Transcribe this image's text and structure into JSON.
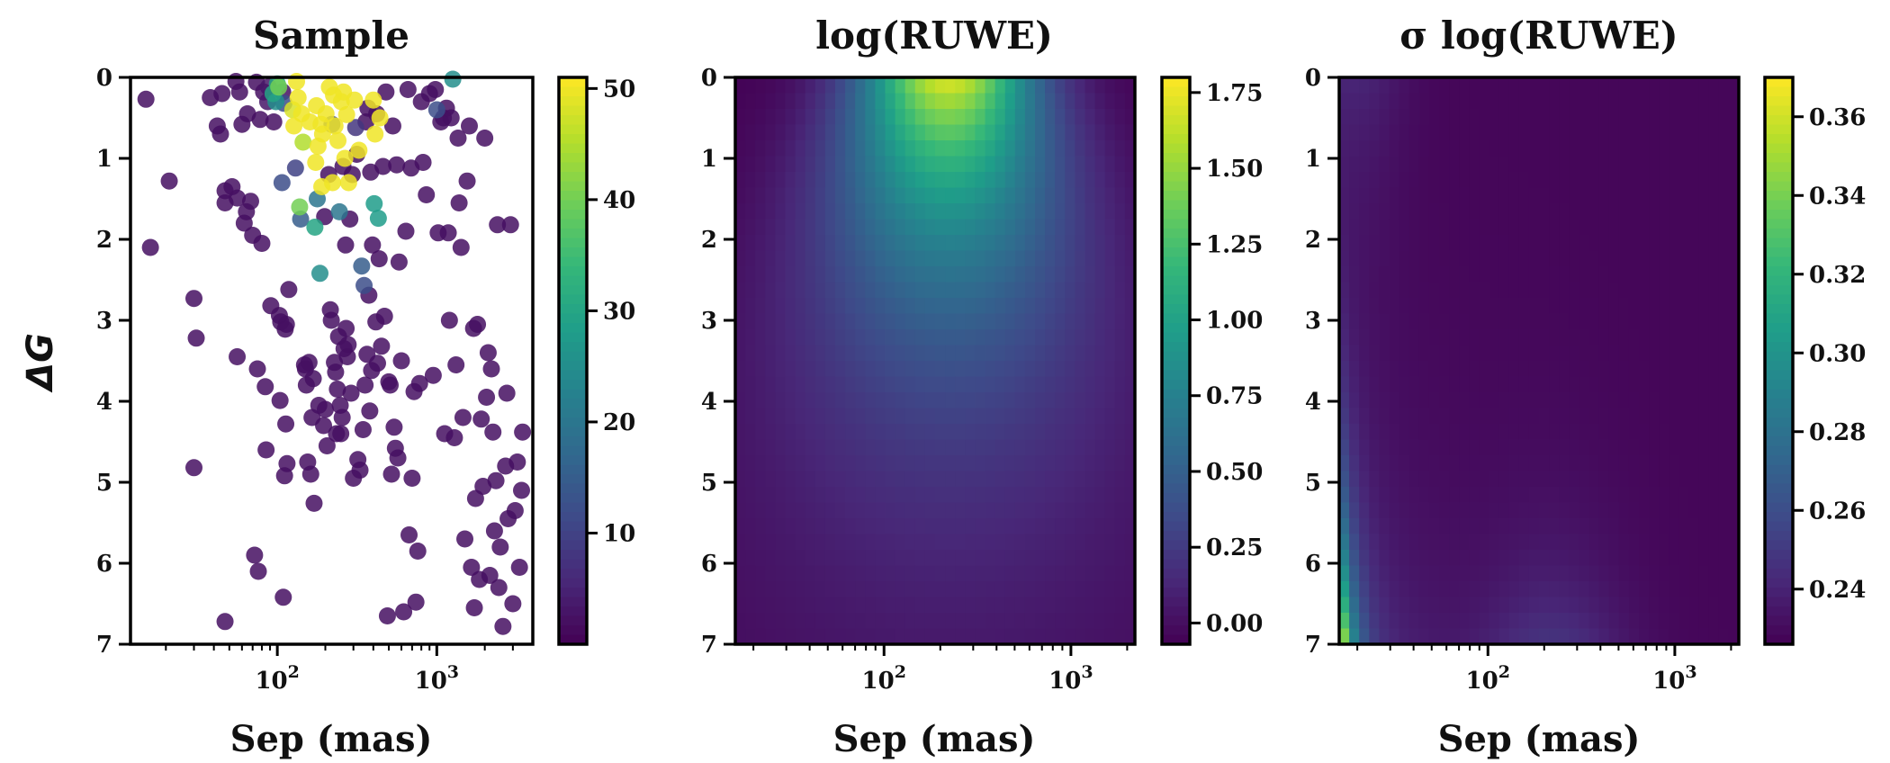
{
  "chart_data": [
    {
      "type": "scatter",
      "title": "Sample",
      "xlabel": "Sep (mas)",
      "ylabel": "ΔG",
      "x_scale": "log",
      "xlim": [
        12,
        4000
      ],
      "ylim": [
        0,
        7
      ],
      "y_inverted": true,
      "x_ticks": [
        {
          "value": 100,
          "base": "10",
          "exp": "2"
        },
        {
          "value": 1000,
          "base": "10",
          "exp": "3"
        }
      ],
      "y_ticks": [
        "0",
        "1",
        "2",
        "3",
        "4",
        "5",
        "6",
        "7"
      ],
      "colorbar": {
        "range": [
          0,
          51
        ],
        "ticks": [
          "10",
          "20",
          "30",
          "40",
          "50"
        ],
        "colormap": "viridis"
      },
      "points": [
        [
          15,
          0.27,
          2
        ],
        [
          16,
          2.1,
          2
        ],
        [
          21,
          1.28,
          2
        ],
        [
          30,
          2.73,
          2
        ],
        [
          31,
          3.22,
          2
        ],
        [
          30,
          4.82,
          2
        ],
        [
          38,
          0.25,
          2
        ],
        [
          42,
          0.6,
          2
        ],
        [
          44,
          0.7,
          2
        ],
        [
          45,
          0.2,
          2
        ],
        [
          47,
          1.4,
          2
        ],
        [
          47,
          1.55,
          2
        ],
        [
          47,
          6.72,
          2
        ],
        [
          52,
          1.35,
          2
        ],
        [
          55,
          0.05,
          2
        ],
        [
          56,
          1.49,
          2
        ],
        [
          56,
          3.45,
          2
        ],
        [
          58,
          0.18,
          2
        ],
        [
          60,
          0.58,
          2
        ],
        [
          62,
          1.8,
          2
        ],
        [
          64,
          1.66,
          2
        ],
        [
          65,
          0.45,
          2
        ],
        [
          68,
          1.53,
          2
        ],
        [
          70,
          1.95,
          2
        ],
        [
          72,
          5.9,
          2
        ],
        [
          74,
          0.06,
          2
        ],
        [
          75,
          3.6,
          2
        ],
        [
          76,
          6.1,
          2
        ],
        [
          78,
          0.52,
          2
        ],
        [
          80,
          2.05,
          2
        ],
        [
          82,
          0.18,
          2
        ],
        [
          84,
          3.82,
          2
        ],
        [
          85,
          4.6,
          2
        ],
        [
          87,
          0.3,
          3
        ],
        [
          88,
          0.12,
          3
        ],
        [
          91,
          2.82,
          2
        ],
        [
          94,
          0.2,
          30
        ],
        [
          95,
          0.55,
          2
        ],
        [
          98,
          0.3,
          25
        ],
        [
          100,
          0.08,
          30
        ],
        [
          102,
          0.12,
          40
        ],
        [
          103,
          2.94,
          2
        ],
        [
          104,
          3.99,
          2
        ],
        [
          105,
          3.02,
          2
        ],
        [
          107,
          1.3,
          12
        ],
        [
          108,
          0.18,
          2
        ],
        [
          109,
          6.42,
          2
        ],
        [
          110,
          0.32,
          12
        ],
        [
          111,
          4.92,
          2
        ],
        [
          112,
          3.11,
          2
        ],
        [
          113,
          4.28,
          2
        ],
        [
          114,
          3.05,
          2
        ],
        [
          115,
          4.77,
          2
        ],
        [
          118,
          2.62,
          2
        ],
        [
          125,
          0.4,
          48
        ],
        [
          127,
          0.6,
          50
        ],
        [
          130,
          1.12,
          10
        ],
        [
          132,
          0.05,
          50
        ],
        [
          135,
          0.25,
          50
        ],
        [
          138,
          1.6,
          40
        ],
        [
          140,
          1.75,
          15
        ],
        [
          142,
          0.45,
          50
        ],
        [
          145,
          0.8,
          45
        ],
        [
          148,
          3.55,
          2
        ],
        [
          150,
          3.6,
          2
        ],
        [
          152,
          3.8,
          2
        ],
        [
          155,
          4.75,
          2
        ],
        [
          158,
          3.52,
          2
        ],
        [
          160,
          0.55,
          50
        ],
        [
          162,
          4.9,
          2
        ],
        [
          165,
          4.2,
          2
        ],
        [
          168,
          3.72,
          2
        ],
        [
          170,
          5.26,
          2
        ],
        [
          172,
          1.85,
          30
        ],
        [
          174,
          1.05,
          50
        ],
        [
          176,
          0.35,
          50
        ],
        [
          178,
          1.5,
          20
        ],
        [
          180,
          0.85,
          50
        ],
        [
          182,
          4.05,
          2
        ],
        [
          185,
          2.42,
          25
        ],
        [
          188,
          0.58,
          50
        ],
        [
          190,
          1.35,
          50
        ],
        [
          192,
          0.7,
          50
        ],
        [
          195,
          4.3,
          2
        ],
        [
          198,
          1.72,
          2
        ],
        [
          200,
          4.1,
          2
        ],
        [
          202,
          0.45,
          50
        ],
        [
          205,
          4.55,
          2
        ],
        [
          210,
          1.2,
          2
        ],
        [
          212,
          0.12,
          50
        ],
        [
          215,
          2.87,
          2
        ],
        [
          218,
          3.0,
          2
        ],
        [
          220,
          0.58,
          12
        ],
        [
          222,
          1.3,
          50
        ],
        [
          225,
          0.22,
          50
        ],
        [
          228,
          3.52,
          2
        ],
        [
          230,
          0.6,
          50
        ],
        [
          232,
          3.64,
          2
        ],
        [
          235,
          4.4,
          2
        ],
        [
          238,
          3.85,
          2
        ],
        [
          240,
          0.78,
          50
        ],
        [
          242,
          3.2,
          2
        ],
        [
          245,
          1.66,
          20
        ],
        [
          248,
          4.05,
          2
        ],
        [
          250,
          4.4,
          2
        ],
        [
          252,
          0.3,
          50
        ],
        [
          255,
          4.2,
          2
        ],
        [
          258,
          1.1,
          2
        ],
        [
          260,
          0.18,
          50
        ],
        [
          262,
          3.35,
          2
        ],
        [
          265,
          1.0,
          50
        ],
        [
          268,
          2.07,
          2
        ],
        [
          270,
          3.1,
          2
        ],
        [
          272,
          0.46,
          50
        ],
        [
          275,
          3.45,
          2
        ],
        [
          278,
          3.3,
          2
        ],
        [
          280,
          1.3,
          50
        ],
        [
          285,
          1.75,
          2
        ],
        [
          290,
          3.9,
          2
        ],
        [
          295,
          1.2,
          2
        ],
        [
          300,
          4.95,
          2
        ],
        [
          305,
          0.28,
          50
        ],
        [
          310,
          0.62,
          8
        ],
        [
          315,
          0.95,
          2
        ],
        [
          320,
          4.72,
          2
        ],
        [
          325,
          0.9,
          50
        ],
        [
          330,
          4.85,
          2
        ],
        [
          338,
          2.33,
          15
        ],
        [
          345,
          4.35,
          2
        ],
        [
          350,
          2.57,
          12
        ],
        [
          355,
          3.8,
          2
        ],
        [
          360,
          0.55,
          2
        ],
        [
          365,
          3.42,
          2
        ],
        [
          370,
          0.38,
          2
        ],
        [
          375,
          2.69,
          2
        ],
        [
          380,
          4.12,
          2
        ],
        [
          385,
          1.17,
          2
        ],
        [
          390,
          3.62,
          2
        ],
        [
          395,
          2.07,
          2
        ],
        [
          400,
          0.28,
          50
        ],
        [
          405,
          1.56,
          28
        ],
        [
          410,
          0.7,
          50
        ],
        [
          415,
          3.02,
          2
        ],
        [
          420,
          0.45,
          2
        ],
        [
          425,
          3.53,
          2
        ],
        [
          430,
          1.74,
          28
        ],
        [
          435,
          2.24,
          2
        ],
        [
          440,
          0.5,
          50
        ],
        [
          450,
          3.32,
          2
        ],
        [
          460,
          1.1,
          2
        ],
        [
          470,
          2.95,
          2
        ],
        [
          480,
          0.18,
          2
        ],
        [
          490,
          6.65,
          2
        ],
        [
          500,
          3.76,
          2
        ],
        [
          510,
          3.8,
          2
        ],
        [
          520,
          4.9,
          2
        ],
        [
          530,
          0.6,
          2
        ],
        [
          540,
          4.32,
          2
        ],
        [
          550,
          4.58,
          2
        ],
        [
          560,
          1.08,
          2
        ],
        [
          570,
          4.7,
          2
        ],
        [
          580,
          2.28,
          2
        ],
        [
          600,
          3.5,
          2
        ],
        [
          620,
          6.6,
          2
        ],
        [
          640,
          1.9,
          2
        ],
        [
          660,
          0.15,
          2
        ],
        [
          670,
          5.65,
          2
        ],
        [
          690,
          1.12,
          2
        ],
        [
          700,
          4.95,
          2
        ],
        [
          720,
          3.88,
          2
        ],
        [
          740,
          6.48,
          2
        ],
        [
          760,
          5.85,
          2
        ],
        [
          780,
          3.78,
          2
        ],
        [
          800,
          0.3,
          2
        ],
        [
          820,
          1.05,
          2
        ],
        [
          860,
          1.45,
          2
        ],
        [
          900,
          0.2,
          2
        ],
        [
          950,
          3.68,
          2
        ],
        [
          980,
          0.15,
          2
        ],
        [
          1000,
          0.4,
          12
        ],
        [
          1020,
          1.92,
          2
        ],
        [
          1060,
          0.55,
          2
        ],
        [
          1100,
          0.5,
          2
        ],
        [
          1120,
          4.4,
          2
        ],
        [
          1150,
          0.38,
          2
        ],
        [
          1180,
          1.92,
          2
        ],
        [
          1200,
          3.0,
          2
        ],
        [
          1230,
          0.5,
          2
        ],
        [
          1260,
          0.0,
          25
        ],
        [
          1290,
          4.45,
          2
        ],
        [
          1320,
          3.55,
          2
        ],
        [
          1360,
          0.75,
          2
        ],
        [
          1380,
          1.55,
          2
        ],
        [
          1420,
          2.1,
          2
        ],
        [
          1460,
          4.2,
          2
        ],
        [
          1500,
          5.7,
          2
        ],
        [
          1550,
          1.28,
          2
        ],
        [
          1600,
          0.6,
          2
        ],
        [
          1650,
          6.05,
          2
        ],
        [
          1700,
          3.1,
          2
        ],
        [
          1720,
          6.55,
          2
        ],
        [
          1750,
          5.2,
          2
        ],
        [
          1800,
          3.05,
          2
        ],
        [
          1850,
          6.2,
          2
        ],
        [
          1900,
          4.22,
          2
        ],
        [
          1950,
          5.05,
          2
        ],
        [
          2000,
          0.75,
          2
        ],
        [
          2050,
          3.95,
          2
        ],
        [
          2100,
          3.4,
          2
        ],
        [
          2150,
          6.15,
          2
        ],
        [
          2200,
          3.6,
          2
        ],
        [
          2250,
          4.38,
          2
        ],
        [
          2300,
          5.6,
          2
        ],
        [
          2350,
          4.98,
          2
        ],
        [
          2400,
          1.82,
          2
        ],
        [
          2450,
          6.3,
          2
        ],
        [
          2500,
          5.8,
          2
        ],
        [
          2600,
          6.78,
          2
        ],
        [
          2700,
          4.8,
          2
        ],
        [
          2750,
          3.9,
          2
        ],
        [
          2800,
          5.45,
          2
        ],
        [
          2900,
          1.82,
          2
        ],
        [
          3000,
          6.5,
          2
        ],
        [
          3100,
          5.35,
          2
        ],
        [
          3200,
          4.75,
          2
        ],
        [
          3300,
          6.05,
          2
        ],
        [
          3400,
          5.1,
          2
        ],
        [
          3450,
          4.38,
          2
        ]
      ]
    },
    {
      "type": "heatmap",
      "title": "log(RUWE)",
      "xlabel": "Sep (mas)",
      "x_scale": "log",
      "xlim": [
        16,
        2200
      ],
      "ylim": [
        0,
        7
      ],
      "y_inverted": true,
      "x_ticks": [
        {
          "value": 100,
          "base": "10",
          "exp": "2"
        },
        {
          "value": 1000,
          "base": "10",
          "exp": "3"
        }
      ],
      "y_ticks": [
        "0",
        "1",
        "2",
        "3",
        "4",
        "5",
        "6",
        "7"
      ],
      "grid": {
        "nx": 40,
        "ny": 36
      },
      "peak": {
        "sep": 220,
        "dg": 0.0,
        "value": 1.78
      },
      "colorbar": {
        "range": [
          -0.07,
          1.8
        ],
        "ticks": [
          "0.00",
          "0.25",
          "0.50",
          "0.75",
          "1.00",
          "1.25",
          "1.50",
          "1.75"
        ],
        "colormap": "viridis"
      }
    },
    {
      "type": "heatmap",
      "title": "σ log(RUWE)",
      "xlabel": "Sep (mas)",
      "x_scale": "log",
      "xlim": [
        16,
        2200
      ],
      "ylim": [
        0,
        7
      ],
      "y_inverted": true,
      "x_ticks": [
        {
          "value": 100,
          "base": "10",
          "exp": "2"
        },
        {
          "value": 1000,
          "base": "10",
          "exp": "3"
        }
      ],
      "y_ticks": [
        "0",
        "1",
        "2",
        "3",
        "4",
        "5",
        "6",
        "7"
      ],
      "grid": {
        "nx": 40,
        "ny": 36
      },
      "colorbar": {
        "range": [
          0.226,
          0.37
        ],
        "ticks": [
          "0.24",
          "0.26",
          "0.28",
          "0.30",
          "0.32",
          "0.34",
          "0.36"
        ],
        "colormap": "viridis"
      }
    }
  ]
}
